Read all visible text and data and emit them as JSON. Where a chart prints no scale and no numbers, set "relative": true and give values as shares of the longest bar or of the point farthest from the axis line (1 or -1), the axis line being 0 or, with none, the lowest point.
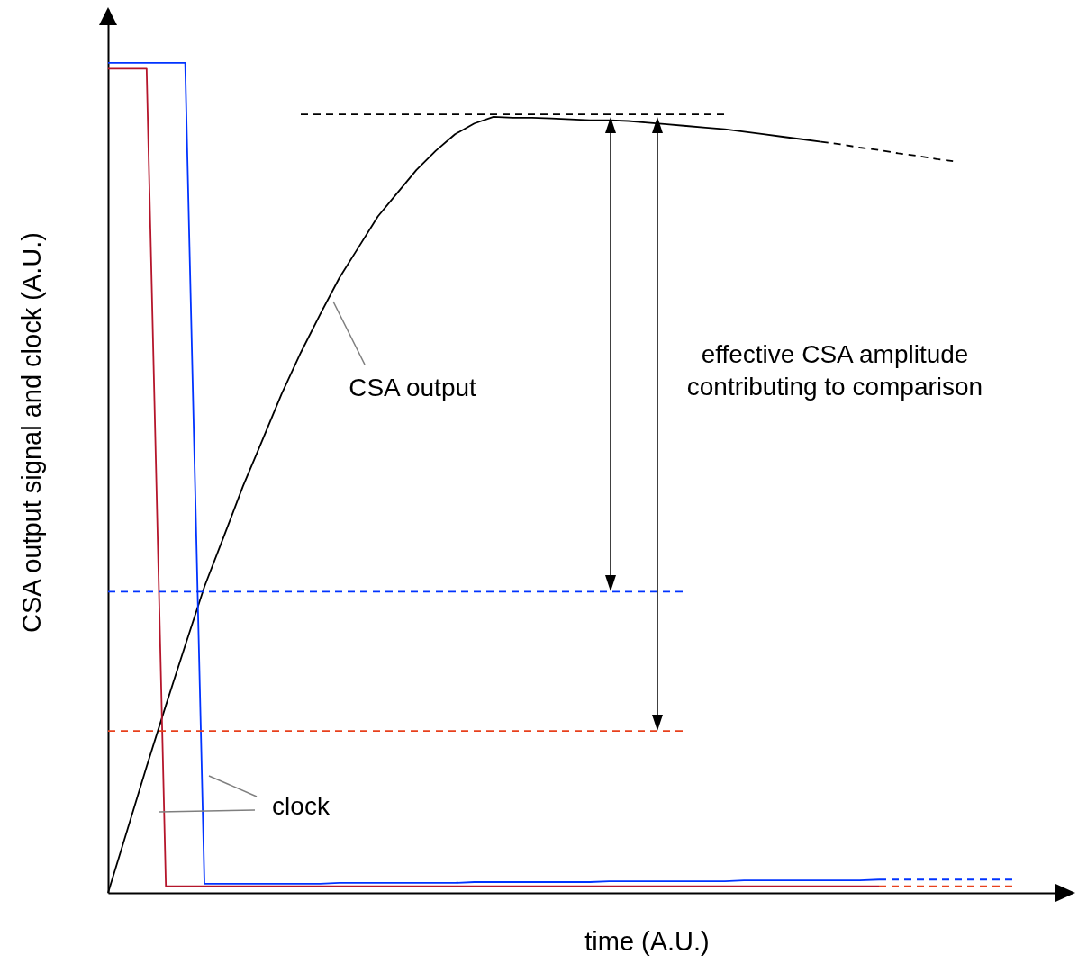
{
  "chart_data": {
    "type": "line",
    "relative": true,
    "xlabel": "time (A.U.)",
    "ylabel": "CSA output signal and clock (A.U.)",
    "annotations": [
      "CSA output",
      "clock",
      "effective CSA amplitude\ncontributing to comparison"
    ],
    "categories": [
      null,
      null,
      null,
      null,
      null,
      null,
      null,
      null,
      null,
      null,
      null,
      null,
      null,
      null,
      null,
      null,
      null,
      null,
      null,
      null,
      null,
      null,
      null,
      null,
      null,
      null,
      null,
      null,
      null,
      null,
      null,
      null,
      null,
      null,
      null,
      null,
      null,
      null,
      null,
      null,
      null,
      null,
      null,
      null,
      null,
      null,
      null,
      null,
      null,
      null,
      null
    ],
    "series": [
      {
        "color": "#000000",
        "line_style": "solid",
        "values": [
          0,
          0.076,
          0.152,
          0.226,
          0.298,
          0.369,
          0.429,
          0.49,
          0.545,
          0.601,
          0.651,
          0.697,
          0.741,
          0.778,
          0.815,
          0.843,
          0.871,
          0.894,
          0.914,
          0.927,
          0.935,
          0.934,
          0.934,
          0.933,
          0.932,
          0.931,
          0.931,
          0.93,
          0.928,
          0.926,
          0.924,
          0.922,
          0.92,
          0.917,
          0.914,
          0.911,
          0.908,
          0.905,
          null,
          null,
          null,
          null,
          null,
          null,
          null,
          null,
          null,
          null,
          null,
          null,
          null
        ]
      },
      {
        "color": "#000000",
        "line_style": "dashed",
        "values": [
          null,
          null,
          null,
          null,
          null,
          null,
          null,
          null,
          null,
          null,
          null,
          null,
          null,
          null,
          null,
          null,
          null,
          null,
          null,
          null,
          null,
          null,
          null,
          null,
          null,
          null,
          null,
          null,
          null,
          null,
          null,
          null,
          null,
          null,
          null,
          null,
          null,
          0.905,
          0.902,
          0.898,
          0.895,
          0.891,
          0.888,
          0.884,
          0.881,
          null,
          null,
          null,
          null,
          null,
          null
        ]
      },
      {
        "color": "#000000",
        "line_style": "dashed",
        "values": [
          null,
          null,
          null,
          null,
          null,
          null,
          null,
          null,
          null,
          null,
          0.938,
          0.938,
          0.938,
          0.938,
          0.938,
          0.938,
          0.938,
          0.938,
          0.938,
          0.938,
          0.938,
          0.938,
          0.938,
          0.938,
          0.938,
          0.938,
          0.938,
          0.938,
          0.938,
          0.938,
          0.938,
          0.938,
          0.938,
          null,
          null,
          null,
          null,
          null,
          null,
          null,
          null,
          null,
          null,
          null,
          null,
          null,
          null,
          null,
          null,
          null,
          null
        ]
      },
      {
        "color": "#0033ff",
        "line_style": "solid",
        "values": [
          1,
          1,
          1,
          1,
          1,
          0.011,
          0.011,
          0.011,
          0.011,
          0.011,
          0.011,
          0.011,
          0.012,
          0.012,
          0.012,
          0.012,
          0.012,
          0.012,
          0.012,
          0.013,
          0.013,
          0.013,
          0.013,
          0.013,
          0.013,
          0.013,
          0.014,
          0.014,
          0.014,
          0.014,
          0.014,
          0.014,
          0.014,
          0.015,
          0.015,
          0.015,
          0.015,
          0.015,
          0.015,
          0.015,
          0.016,
          null,
          null,
          null,
          null,
          null,
          null,
          null,
          null,
          null,
          null
        ]
      },
      {
        "color": "#0033ff",
        "line_style": "dashed",
        "values": [
          null,
          null,
          null,
          null,
          null,
          null,
          null,
          null,
          null,
          null,
          null,
          null,
          null,
          null,
          null,
          null,
          null,
          null,
          null,
          null,
          null,
          null,
          null,
          null,
          null,
          null,
          null,
          null,
          null,
          null,
          null,
          null,
          null,
          null,
          null,
          null,
          null,
          null,
          null,
          null,
          0.016,
          0.016,
          0.016,
          0.016,
          0.016,
          0.016,
          0.016,
          0.016,
          null,
          null,
          null
        ]
      },
      {
        "color": "#b5152b",
        "line_style": "solid",
        "values": [
          0.993,
          0.993,
          0.993,
          0.008,
          0.008,
          0.008,
          0.008,
          0.008,
          0.008,
          0.008,
          0.008,
          0.008,
          0.008,
          0.008,
          0.008,
          0.008,
          0.008,
          0.008,
          0.008,
          0.008,
          0.008,
          0.008,
          0.008,
          0.008,
          0.008,
          0.008,
          0.008,
          0.008,
          0.008,
          0.008,
          0.008,
          0.008,
          0.008,
          0.008,
          0.008,
          0.008,
          0.008,
          0.008,
          0.008,
          0.008,
          0.008,
          null,
          null,
          null,
          null,
          null,
          null,
          null,
          null,
          null,
          null
        ]
      },
      {
        "color": "#e8401c",
        "line_style": "dashed",
        "values": [
          null,
          null,
          null,
          null,
          null,
          null,
          null,
          null,
          null,
          null,
          null,
          null,
          null,
          null,
          null,
          null,
          null,
          null,
          null,
          null,
          null,
          null,
          null,
          null,
          null,
          null,
          null,
          null,
          null,
          null,
          null,
          null,
          null,
          null,
          null,
          null,
          null,
          null,
          null,
          null,
          0.008,
          0.008,
          0.008,
          0.008,
          0.008,
          0.008,
          0.008,
          0.008,
          null,
          null,
          null
        ]
      },
      {
        "color": "#0033ff",
        "line_style": "dashed",
        "values": [
          0.363,
          0.363,
          0.363,
          0.363,
          0.363,
          0.363,
          0.363,
          0.363,
          0.363,
          0.363,
          0.363,
          0.363,
          0.363,
          0.363,
          0.363,
          0.363,
          0.363,
          0.363,
          0.363,
          0.363,
          0.363,
          0.363,
          0.363,
          0.363,
          0.363,
          0.363,
          0.363,
          0.363,
          0.363,
          0.363,
          0.363,
          null,
          null,
          null,
          null,
          null,
          null,
          null,
          null,
          null,
          null,
          null,
          null,
          null,
          null,
          null,
          null,
          null,
          null,
          null,
          null
        ]
      },
      {
        "color": "#e8401c",
        "line_style": "dashed",
        "values": [
          0.195,
          0.195,
          0.195,
          0.195,
          0.195,
          0.195,
          0.195,
          0.195,
          0.195,
          0.195,
          0.195,
          0.195,
          0.195,
          0.195,
          0.195,
          0.195,
          0.195,
          0.195,
          0.195,
          0.195,
          0.195,
          0.195,
          0.195,
          0.195,
          0.195,
          0.195,
          0.195,
          0.195,
          0.195,
          0.195,
          0.195,
          null,
          null,
          null,
          null,
          null,
          null,
          null,
          null,
          null,
          null,
          null,
          null,
          null,
          null,
          null,
          null,
          null,
          null,
          null,
          null
        ]
      }
    ]
  }
}
